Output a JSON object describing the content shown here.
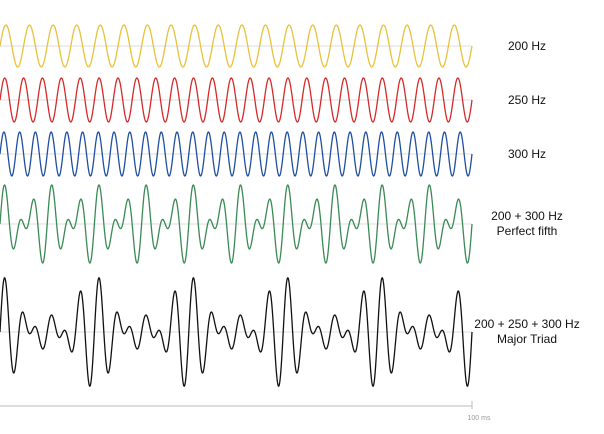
{
  "chart_data": {
    "type": "line",
    "x_range_ms": [
      0,
      100
    ],
    "x_end_label": "100 ms",
    "grid": false,
    "legend": "right of each waveform",
    "series": [
      {
        "name": "200 Hz",
        "line2": "",
        "frequencies_hz": [
          200
        ],
        "color": "#e8c23a"
      },
      {
        "name": "250 Hz",
        "line2": "",
        "frequencies_hz": [
          250
        ],
        "color": "#d62a2a"
      },
      {
        "name": "300 Hz",
        "line2": "",
        "frequencies_hz": [
          300
        ],
        "color": "#1f4fa0"
      },
      {
        "name": "200 + 300 Hz",
        "line2": "Perfect fifth",
        "frequencies_hz": [
          200,
          300
        ],
        "color": "#3a8a55"
      },
      {
        "name": "200 + 250 + 300 Hz",
        "line2": "Major Triad",
        "frequencies_hz": [
          200,
          250,
          300
        ],
        "color": "#111111"
      }
    ]
  }
}
